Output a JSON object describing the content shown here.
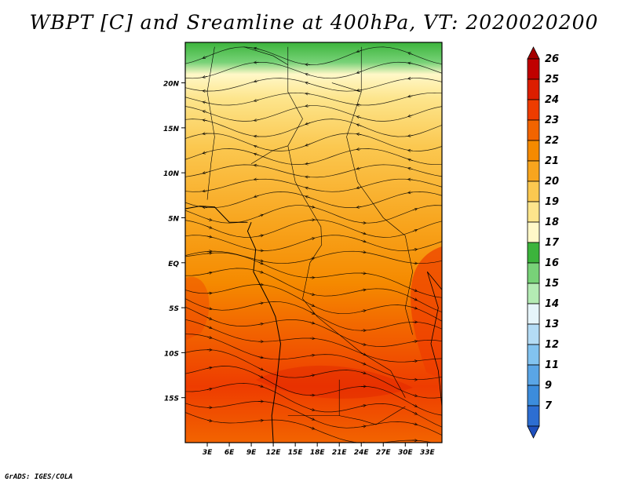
{
  "title": "WBPT [C] and Sreamline at 400hPa, VT: 2020020200",
  "credit": "GrADS: IGES/COLA",
  "map": {
    "lat_range": [
      -20,
      24.5
    ],
    "lon_range": [
      0,
      35
    ],
    "lat_ticks": [
      "20N",
      "15N",
      "10N",
      "5N",
      "EQ",
      "5S",
      "10S",
      "15S"
    ],
    "lon_ticks": [
      "3E",
      "6E",
      "9E",
      "12E",
      "15E",
      "18E",
      "21E",
      "24E",
      "27E",
      "30E",
      "33E"
    ]
  },
  "colorbar": {
    "levels": [
      "26",
      "25",
      "24",
      "23",
      "22",
      "21",
      "20",
      "19",
      "18",
      "17",
      "16",
      "15",
      "14",
      "13",
      "12",
      "11",
      "9",
      "7"
    ],
    "colors": {
      "top_arrow": "#a50000",
      "26": "#c00000",
      "25": "#dc1e00",
      "24": "#ee3c00",
      "23": "#f26400",
      "22": "#f58a00",
      "21": "#f8a51e",
      "20": "#fbc850",
      "19": "#fde58c",
      "18": "#fff8c8",
      "17": "#3cb43c",
      "16": "#78d278",
      "15": "#b4ebb4",
      "14": "#e6f5fa",
      "13": "#b4dcf5",
      "12": "#82c3f0",
      "11": "#5aa5e6",
      "9": "#3c8cdc",
      "7": "#2d6ed2",
      "bottom_arrow": "#1e50be"
    }
  }
}
